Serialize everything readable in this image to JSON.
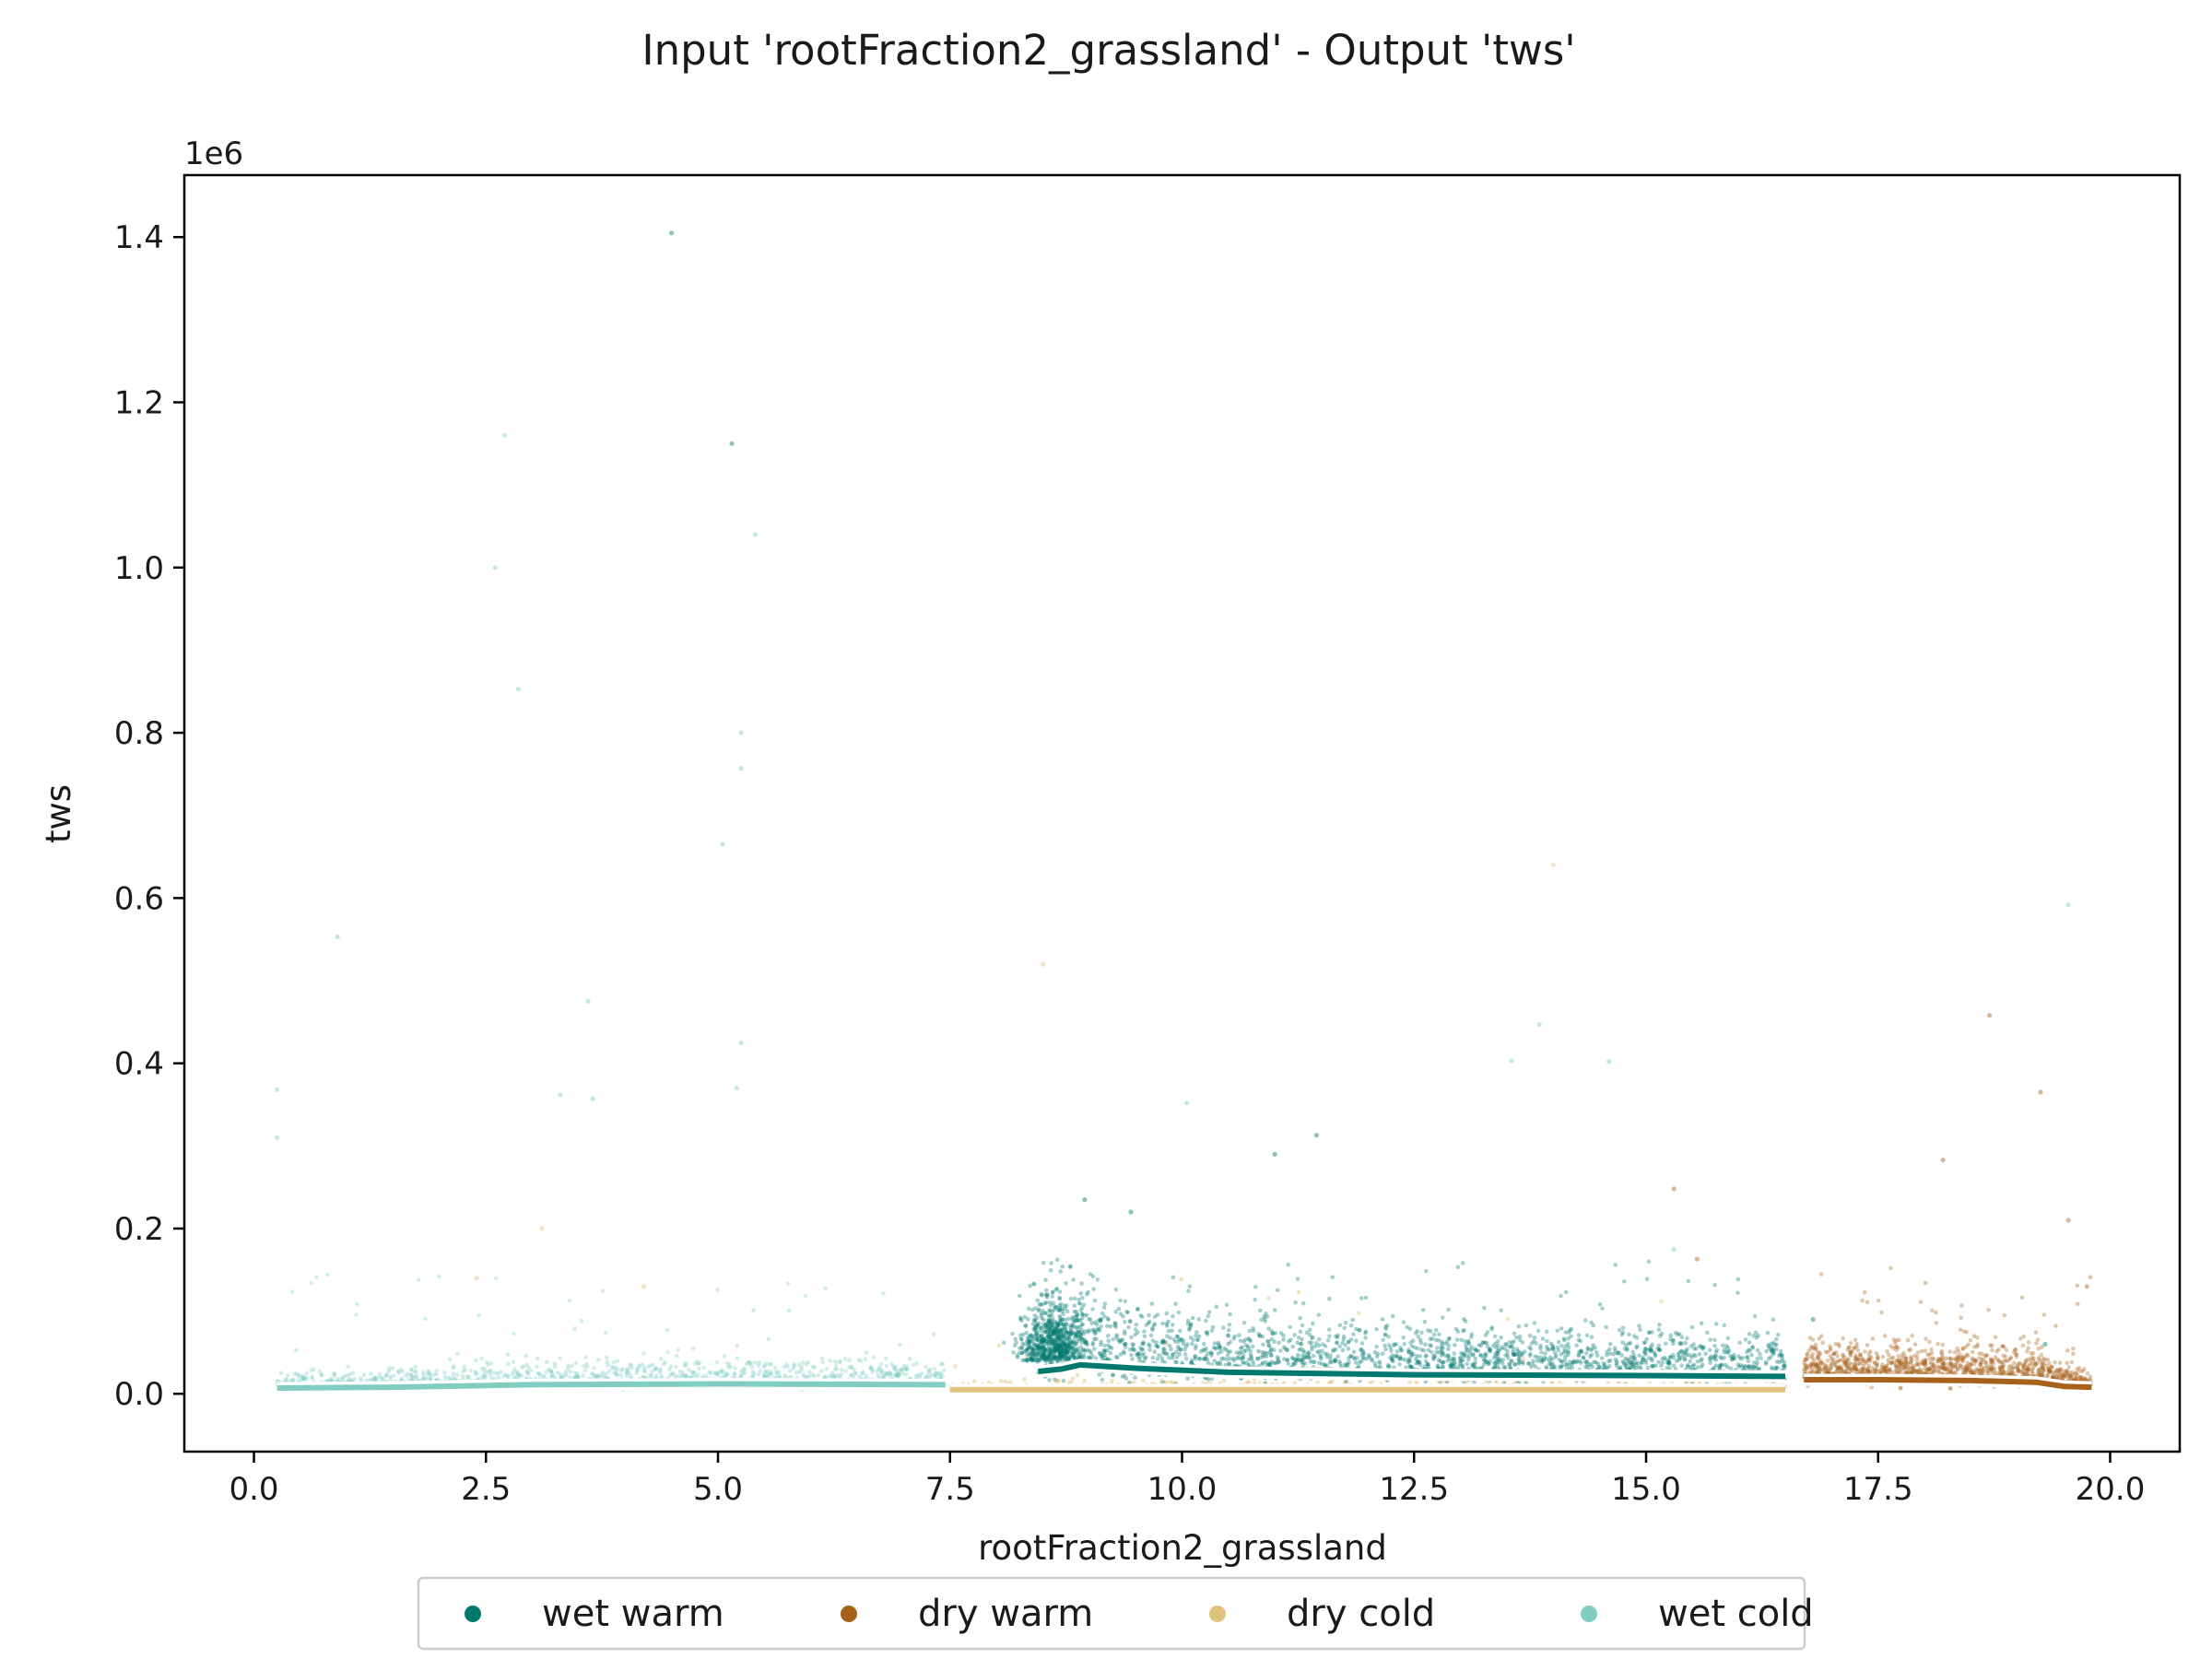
{
  "chart_data": {
    "type": "scatter",
    "title": "Input 'rootFraction2_grassland' - Output 'tws'",
    "xlabel": "rootFraction2_grassland",
    "ylabel": "tws",
    "y_offset_label": "1e6",
    "xlim": [
      -0.75,
      20.75
    ],
    "ylim": [
      -70000,
      1475000
    ],
    "x_ticks": [
      0.0,
      2.5,
      5.0,
      7.5,
      10.0,
      12.5,
      15.0,
      17.5,
      20.0
    ],
    "x_tick_labels": [
      "0.0",
      "2.5",
      "5.0",
      "7.5",
      "10.0",
      "12.5",
      "15.0",
      "17.5",
      "20.0"
    ],
    "y_ticks": [
      0,
      200000,
      400000,
      600000,
      800000,
      1000000,
      1200000,
      1400000
    ],
    "y_tick_labels": [
      "0.0",
      "0.2",
      "0.4",
      "0.6",
      "0.8",
      "1.0",
      "1.2",
      "1.4"
    ],
    "grid": false,
    "legend_position": "bottom-center",
    "series": [
      {
        "name": "wet warm",
        "color": "#01796f",
        "trend": [
          [
            8.45,
            27000
          ],
          [
            8.7,
            30000
          ],
          [
            8.9,
            35000
          ],
          [
            9.5,
            31000
          ],
          [
            10.5,
            26000
          ],
          [
            12.5,
            23000
          ],
          [
            15.0,
            22000
          ],
          [
            16.5,
            21000
          ]
        ],
        "outliers": [
          [
            4.5,
            1405000
          ],
          [
            5.15,
            1150000
          ],
          [
            8.95,
            235000
          ],
          [
            9.45,
            220000
          ],
          [
            11.45,
            313000
          ],
          [
            11.0,
            290000
          ],
          [
            16.8,
            90000
          ],
          [
            19.3,
            60000
          ]
        ]
      },
      {
        "name": "dry warm",
        "color": "#a6611a",
        "trend": [
          [
            16.7,
            17000
          ],
          [
            17.5,
            17000
          ],
          [
            18.5,
            16000
          ],
          [
            19.2,
            14000
          ],
          [
            19.5,
            9000
          ],
          [
            19.8,
            8000
          ]
        ],
        "outliers": [
          [
            18.7,
            458000
          ],
          [
            19.25,
            365000
          ],
          [
            18.2,
            283000
          ],
          [
            19.55,
            210000
          ],
          [
            15.3,
            248000
          ],
          [
            15.55,
            163000
          ],
          [
            19.75,
            130000
          ]
        ]
      },
      {
        "name": "dry cold",
        "color": "#dfc27d",
        "trend": [
          [
            7.5,
            5000
          ],
          [
            10.0,
            5000
          ],
          [
            12.5,
            5000
          ],
          [
            15.0,
            5000
          ],
          [
            16.5,
            5000
          ]
        ],
        "outliers": [
          [
            8.5,
            520000
          ],
          [
            14.0,
            640000
          ],
          [
            3.1,
            200000
          ],
          [
            2.4,
            140000
          ],
          [
            4.2,
            130000
          ]
        ]
      },
      {
        "name": "wet cold",
        "color": "#80cdc1",
        "trend": [
          [
            0.25,
            7000
          ],
          [
            1.5,
            8000
          ],
          [
            3.0,
            11000
          ],
          [
            5.0,
            12000
          ],
          [
            7.45,
            11000
          ]
        ],
        "outliers": [
          [
            2.7,
            1160000
          ],
          [
            2.6,
            1000000
          ],
          [
            5.4,
            1040000
          ],
          [
            2.85,
            853000
          ],
          [
            5.25,
            800000
          ],
          [
            5.25,
            757000
          ],
          [
            5.05,
            665000
          ],
          [
            0.9,
            553000
          ],
          [
            3.6,
            475000
          ],
          [
            5.25,
            425000
          ],
          [
            5.2,
            370000
          ],
          [
            0.25,
            368000
          ],
          [
            3.3,
            362000
          ],
          [
            3.65,
            357000
          ],
          [
            10.05,
            352000
          ],
          [
            0.25,
            310000
          ],
          [
            13.55,
            403000
          ],
          [
            13.85,
            447000
          ],
          [
            14.6,
            402000
          ],
          [
            19.55,
            592000
          ],
          [
            15.3,
            175000
          ]
        ]
      }
    ]
  }
}
